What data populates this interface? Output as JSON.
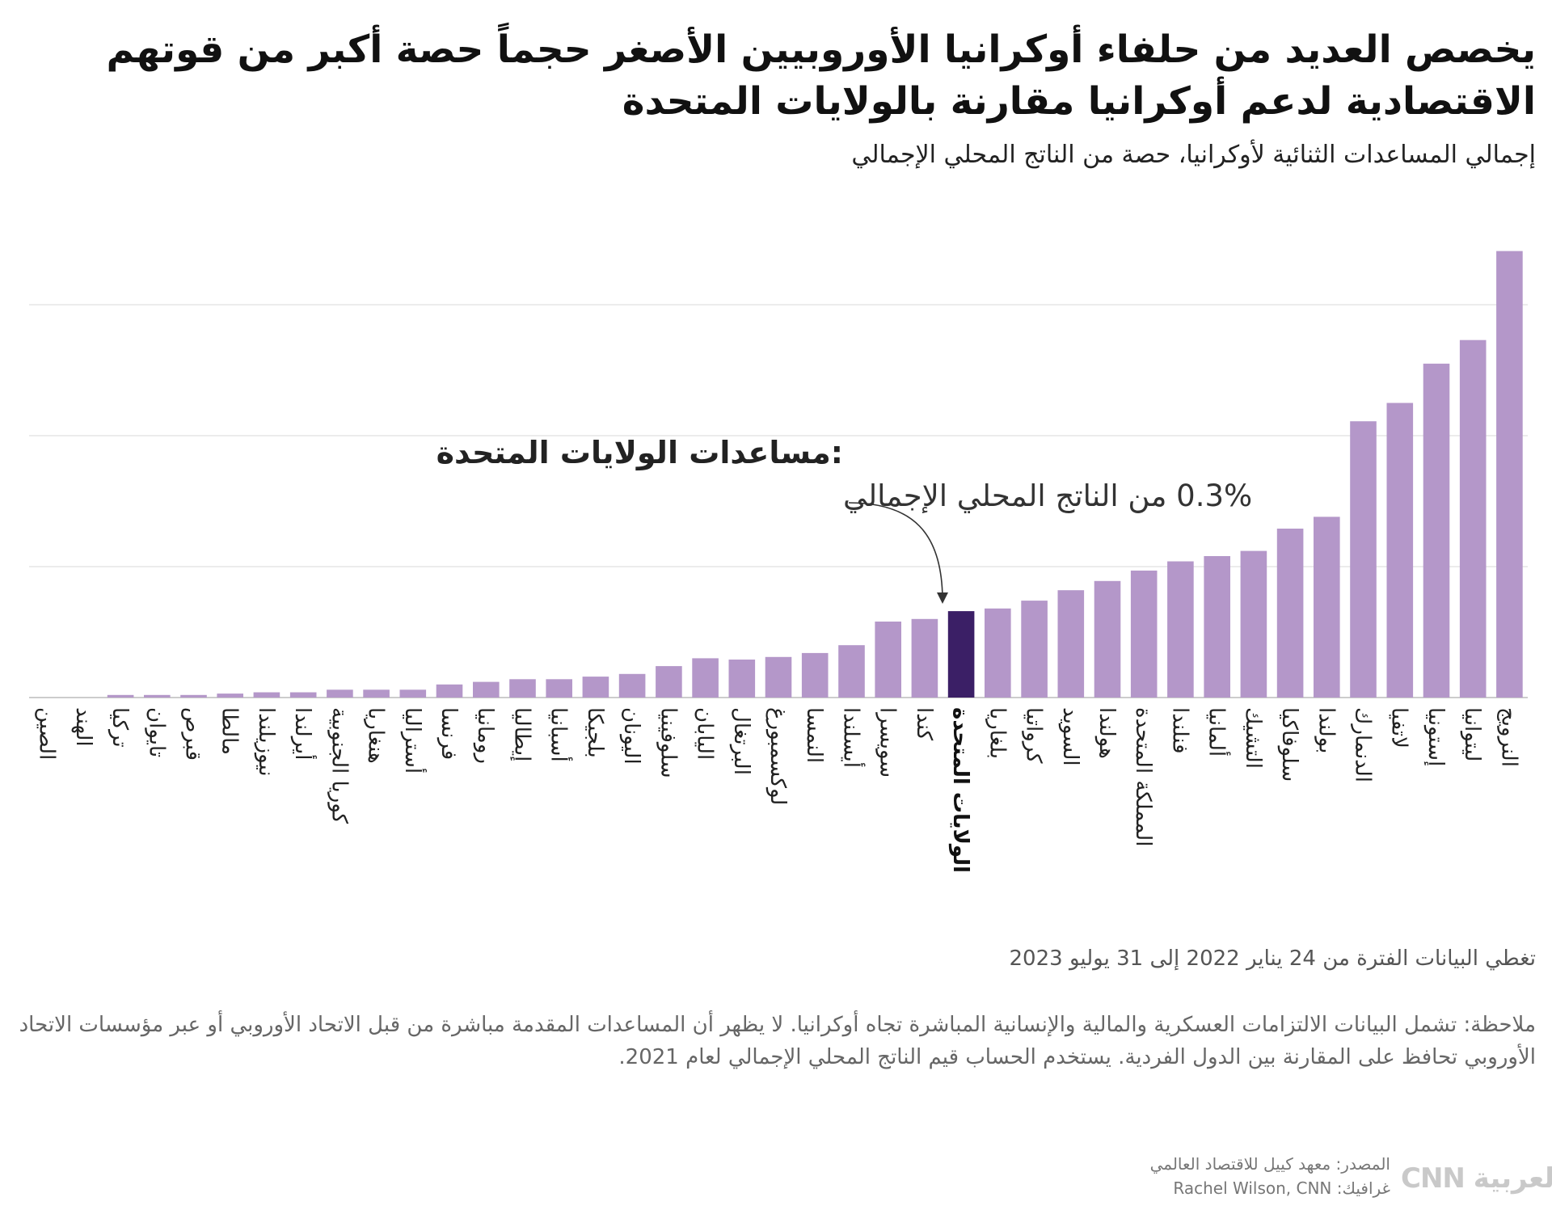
{
  "header": {
    "title": "يخصص العديد من حلفاء أوكرانيا الأوروبيين الأصغر حجماً حصة أكبر من قوتهم الاقتصادية لدعم أوكرانيا مقارنة بالولايات المتحدة",
    "subtitle": "إجمالي المساعدات الثنائية لأوكرانيا، حصة من الناتج المحلي الإجمالي"
  },
  "annotation": {
    "title": "مساعدات الولايات المتحدة:",
    "text": "0.3% من الناتج المحلي الإجمالي"
  },
  "colors": {
    "bar": "#b497c9",
    "highlight": "#3b1f66",
    "grid": "#e6e6e6",
    "axis": "#cccccc"
  },
  "footer": {
    "period": "تغطي البيانات الفترة من 24 يناير 2022 إلى 31 يوليو 2023",
    "note": "ملاحظة: تشمل البيانات الالتزامات العسكرية والمالية والإنسانية المباشرة تجاه أوكرانيا. لا يظهر أن المساعدات المقدمة مباشرة من قبل الاتحاد الأوروبي أو عبر مؤسسات الاتحاد الأوروبي تحافظ على المقارنة بين الدول الفردية. يستخدم الحساب قيم الناتج المحلي الإجمالي لعام 2021.",
    "source": "المصدر: معهد كييل للاقتصاد العالمي",
    "credit": "غرافيك: Rachel Wilson, CNN",
    "logo": "CNN العربية",
    "logo_icon": "cnn-arabic-logo"
  },
  "chart_data": {
    "type": "bar",
    "highlight": "الولايات المتحدة",
    "ylim": [
      0,
      1.7
    ],
    "yticks": [
      0,
      0.5,
      1,
      1.5
    ],
    "grid": true,
    "categories": [
      "الصين",
      "الهند",
      "تركيا",
      "تايوان",
      "قبرص",
      "مالطا",
      "نيوزيلندا",
      "أيرلندا",
      "كوريا الجنوبية",
      "هنغاريا",
      "أستراليا",
      "فرنسا",
      "رومانيا",
      "إيطاليا",
      "أسبانيا",
      "بلجيكا",
      "اليونان",
      "سلوفينيا",
      "اليابان",
      "البرتغال",
      "لوكسمبورغ",
      "النمسا",
      "أيسلندا",
      "سويسرا",
      "كندا",
      "الولايات المتحدة",
      "بلغاريا",
      "كرواتيا",
      "السويد",
      "هولندا",
      "المملكة المتحدة",
      "فنلندا",
      "ألمانيا",
      "التشيك",
      "سلوفاكيا",
      "بولندا",
      "الدنمارك",
      "لاتفيا",
      "إستونيا",
      "ليتوانيا",
      "النرويج"
    ],
    "values": [
      0,
      0,
      0.01,
      0.01,
      0.01,
      0.015,
      0.02,
      0.02,
      0.03,
      0.03,
      0.03,
      0.05,
      0.06,
      0.07,
      0.07,
      0.08,
      0.09,
      0.12,
      0.15,
      0.145,
      0.155,
      0.17,
      0.2,
      0.29,
      0.3,
      0.33,
      0.34,
      0.37,
      0.41,
      0.445,
      0.485,
      0.52,
      0.54,
      0.56,
      0.645,
      0.69,
      1.055,
      1.125,
      1.275,
      1.365,
      1.705
    ]
  }
}
